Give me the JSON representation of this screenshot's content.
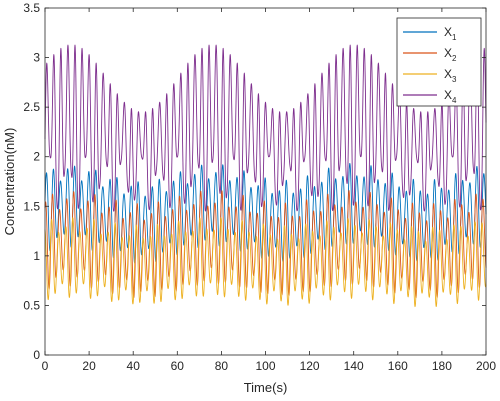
{
  "chart_data": {
    "type": "line",
    "title": "",
    "xlabel": "Time(s)",
    "ylabel": "Concentration(nM)",
    "xlim": [
      0,
      200
    ],
    "ylim": [
      0,
      3.5
    ],
    "xticks": [
      0,
      20,
      40,
      60,
      80,
      100,
      120,
      140,
      160,
      180,
      200
    ],
    "yticks": [
      0,
      0.5,
      1,
      1.5,
      2,
      2.5,
      3,
      3.5
    ],
    "grid": false,
    "legend_position": "top-right",
    "series": [
      {
        "name": "X1",
        "name_base": "X",
        "name_sub": "1",
        "color": "#0072BD",
        "period_s": 3.2,
        "base_min": 1.0,
        "base_max": 1.85,
        "envelope_amplitude": 0.17,
        "envelope_period_s": 64,
        "envelope_phase_s": 12
      },
      {
        "name": "X2",
        "name_base": "X",
        "name_sub": "2",
        "color": "#D95319",
        "period_s": 3.2,
        "base_min": 0.62,
        "base_max": 1.6,
        "envelope_amplitude": 0.13,
        "envelope_period_s": 64,
        "envelope_phase_s": 12
      },
      {
        "name": "X3",
        "name_base": "X",
        "name_sub": "3",
        "color": "#EDB120",
        "period_s": 3.2,
        "base_min": 0.52,
        "base_max": 1.35,
        "envelope_amplitude": 0.08,
        "envelope_period_s": 64,
        "envelope_phase_s": 12
      },
      {
        "name": "X4",
        "name_base": "X",
        "name_sub": "4",
        "color": "#7E2F8E",
        "period_s": 3.2,
        "peak_max": 3.13,
        "peak_min": 2.45,
        "trough_max": 2.0,
        "trough_min": 1.45,
        "envelope_period_s": 64,
        "envelope_phase_s": 12
      }
    ]
  }
}
